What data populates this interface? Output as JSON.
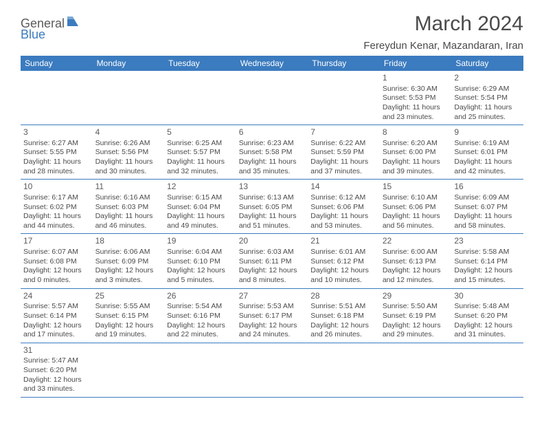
{
  "logo": {
    "part1": "General",
    "part2": "Blue"
  },
  "title": "March 2024",
  "location": "Fereydun Kenar, Mazandaran, Iran",
  "dayNames": [
    "Sunday",
    "Monday",
    "Tuesday",
    "Wednesday",
    "Thursday",
    "Friday",
    "Saturday"
  ],
  "colors": {
    "headerBg": "#3b7bbf",
    "headerText": "#ffffff",
    "border": "#3b7bbf",
    "text": "#4a4a4a",
    "logoGray": "#5a5a5a",
    "logoBlue": "#3b7bbf",
    "pageBg": "#ffffff"
  },
  "weeks": [
    [
      null,
      null,
      null,
      null,
      null,
      {
        "n": "1",
        "sunrise": "6:30 AM",
        "sunset": "5:53 PM",
        "dl": "11 hours and 23 minutes."
      },
      {
        "n": "2",
        "sunrise": "6:29 AM",
        "sunset": "5:54 PM",
        "dl": "11 hours and 25 minutes."
      }
    ],
    [
      {
        "n": "3",
        "sunrise": "6:27 AM",
        "sunset": "5:55 PM",
        "dl": "11 hours and 28 minutes."
      },
      {
        "n": "4",
        "sunrise": "6:26 AM",
        "sunset": "5:56 PM",
        "dl": "11 hours and 30 minutes."
      },
      {
        "n": "5",
        "sunrise": "6:25 AM",
        "sunset": "5:57 PM",
        "dl": "11 hours and 32 minutes."
      },
      {
        "n": "6",
        "sunrise": "6:23 AM",
        "sunset": "5:58 PM",
        "dl": "11 hours and 35 minutes."
      },
      {
        "n": "7",
        "sunrise": "6:22 AM",
        "sunset": "5:59 PM",
        "dl": "11 hours and 37 minutes."
      },
      {
        "n": "8",
        "sunrise": "6:20 AM",
        "sunset": "6:00 PM",
        "dl": "11 hours and 39 minutes."
      },
      {
        "n": "9",
        "sunrise": "6:19 AM",
        "sunset": "6:01 PM",
        "dl": "11 hours and 42 minutes."
      }
    ],
    [
      {
        "n": "10",
        "sunrise": "6:17 AM",
        "sunset": "6:02 PM",
        "dl": "11 hours and 44 minutes."
      },
      {
        "n": "11",
        "sunrise": "6:16 AM",
        "sunset": "6:03 PM",
        "dl": "11 hours and 46 minutes."
      },
      {
        "n": "12",
        "sunrise": "6:15 AM",
        "sunset": "6:04 PM",
        "dl": "11 hours and 49 minutes."
      },
      {
        "n": "13",
        "sunrise": "6:13 AM",
        "sunset": "6:05 PM",
        "dl": "11 hours and 51 minutes."
      },
      {
        "n": "14",
        "sunrise": "6:12 AM",
        "sunset": "6:06 PM",
        "dl": "11 hours and 53 minutes."
      },
      {
        "n": "15",
        "sunrise": "6:10 AM",
        "sunset": "6:06 PM",
        "dl": "11 hours and 56 minutes."
      },
      {
        "n": "16",
        "sunrise": "6:09 AM",
        "sunset": "6:07 PM",
        "dl": "11 hours and 58 minutes."
      }
    ],
    [
      {
        "n": "17",
        "sunrise": "6:07 AM",
        "sunset": "6:08 PM",
        "dl": "12 hours and 0 minutes."
      },
      {
        "n": "18",
        "sunrise": "6:06 AM",
        "sunset": "6:09 PM",
        "dl": "12 hours and 3 minutes."
      },
      {
        "n": "19",
        "sunrise": "6:04 AM",
        "sunset": "6:10 PM",
        "dl": "12 hours and 5 minutes."
      },
      {
        "n": "20",
        "sunrise": "6:03 AM",
        "sunset": "6:11 PM",
        "dl": "12 hours and 8 minutes."
      },
      {
        "n": "21",
        "sunrise": "6:01 AM",
        "sunset": "6:12 PM",
        "dl": "12 hours and 10 minutes."
      },
      {
        "n": "22",
        "sunrise": "6:00 AM",
        "sunset": "6:13 PM",
        "dl": "12 hours and 12 minutes."
      },
      {
        "n": "23",
        "sunrise": "5:58 AM",
        "sunset": "6:14 PM",
        "dl": "12 hours and 15 minutes."
      }
    ],
    [
      {
        "n": "24",
        "sunrise": "5:57 AM",
        "sunset": "6:14 PM",
        "dl": "12 hours and 17 minutes."
      },
      {
        "n": "25",
        "sunrise": "5:55 AM",
        "sunset": "6:15 PM",
        "dl": "12 hours and 19 minutes."
      },
      {
        "n": "26",
        "sunrise": "5:54 AM",
        "sunset": "6:16 PM",
        "dl": "12 hours and 22 minutes."
      },
      {
        "n": "27",
        "sunrise": "5:53 AM",
        "sunset": "6:17 PM",
        "dl": "12 hours and 24 minutes."
      },
      {
        "n": "28",
        "sunrise": "5:51 AM",
        "sunset": "6:18 PM",
        "dl": "12 hours and 26 minutes."
      },
      {
        "n": "29",
        "sunrise": "5:50 AM",
        "sunset": "6:19 PM",
        "dl": "12 hours and 29 minutes."
      },
      {
        "n": "30",
        "sunrise": "5:48 AM",
        "sunset": "6:20 PM",
        "dl": "12 hours and 31 minutes."
      }
    ],
    [
      {
        "n": "31",
        "sunrise": "5:47 AM",
        "sunset": "6:20 PM",
        "dl": "12 hours and 33 minutes."
      },
      null,
      null,
      null,
      null,
      null,
      null
    ]
  ],
  "labels": {
    "sunrise": "Sunrise:",
    "sunset": "Sunset:",
    "daylight": "Daylight:"
  }
}
